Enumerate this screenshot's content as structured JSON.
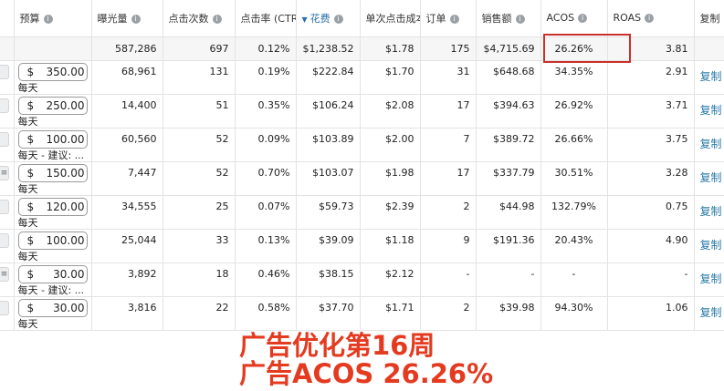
{
  "headers": {
    "budget": "预算",
    "impressions": "曝光量",
    "clicks": "点击次数",
    "ctr": "点击率 (CTR",
    "spend": "花费",
    "cpc": "单次点击成本",
    "orders": "订单",
    "sales": "销售额",
    "acos": "ACOS",
    "roas": "ROAS",
    "copy": "复制"
  },
  "sorted_column": "spend",
  "totals": {
    "impressions": "587,286",
    "clicks": "697",
    "ctr": "0.12%",
    "spend": "$1,238.52",
    "cpc": "$1.78",
    "orders": "175",
    "sales": "$4,715.69",
    "acos": "26.26%",
    "roas": "3.81"
  },
  "rows": [
    {
      "currency": "$",
      "budget": "350.00",
      "note": "每天",
      "impressions": "68,961",
      "clicks": "131",
      "ctr": "0.19%",
      "spend": "$222.84",
      "cpc": "$1.70",
      "orders": "31",
      "sales": "$648.68",
      "acos": "34.35%",
      "roas": "2.91",
      "copy": "复制"
    },
    {
      "currency": "$",
      "budget": "250.00",
      "note": "每天",
      "impressions": "14,400",
      "clicks": "51",
      "ctr": "0.35%",
      "spend": "$106.24",
      "cpc": "$2.08",
      "orders": "17",
      "sales": "$394.63",
      "acos": "26.92%",
      "roas": "3.71",
      "copy": "复制"
    },
    {
      "currency": "$",
      "budget": "100.00",
      "note": "每天 - 建议: ...",
      "impressions": "60,560",
      "clicks": "52",
      "ctr": "0.09%",
      "spend": "$103.89",
      "cpc": "$2.00",
      "orders": "7",
      "sales": "$389.72",
      "acos": "26.66%",
      "roas": "3.75",
      "copy": "复制"
    },
    {
      "currency": "$",
      "budget": "150.00",
      "note": "每天",
      "impressions": "7,447",
      "clicks": "52",
      "ctr": "0.70%",
      "spend": "$103.07",
      "cpc": "$1.98",
      "orders": "17",
      "sales": "$337.79",
      "acos": "30.51%",
      "roas": "3.28",
      "copy": "复制"
    },
    {
      "currency": "$",
      "budget": "120.00",
      "note": "每天",
      "impressions": "34,555",
      "clicks": "25",
      "ctr": "0.07%",
      "spend": "$59.73",
      "cpc": "$2.39",
      "orders": "2",
      "sales": "$44.98",
      "acos": "132.79%",
      "roas": "0.75",
      "copy": "复制"
    },
    {
      "currency": "$",
      "budget": "100.00",
      "note": "每天",
      "impressions": "25,044",
      "clicks": "33",
      "ctr": "0.13%",
      "spend": "$39.09",
      "cpc": "$1.18",
      "orders": "9",
      "sales": "$191.36",
      "acos": "20.43%",
      "roas": "4.90",
      "copy": "复制"
    },
    {
      "currency": "$",
      "budget": "30.00",
      "note": "每天 - 建议: ...",
      "impressions": "3,892",
      "clicks": "18",
      "ctr": "0.46%",
      "spend": "$38.15",
      "cpc": "$2.12",
      "orders": "-",
      "sales": "-",
      "acos": "-",
      "roas": "-",
      "copy": "复制"
    },
    {
      "currency": "$",
      "budget": "30.00",
      "note": "每天",
      "impressions": "3,816",
      "clicks": "22",
      "ctr": "0.58%",
      "spend": "$37.70",
      "cpc": "$1.71",
      "orders": "2",
      "sales": "$39.98",
      "acos": "94.30%",
      "roas": "1.06",
      "copy": "复制"
    }
  ],
  "overlay": {
    "line1": "广告优化第16周",
    "line2": "广告ACOS 26.26%"
  },
  "colors": {
    "highlight_box": "#c9302c",
    "overlay_text": "#e43b20",
    "link": "#2a7aa8"
  }
}
